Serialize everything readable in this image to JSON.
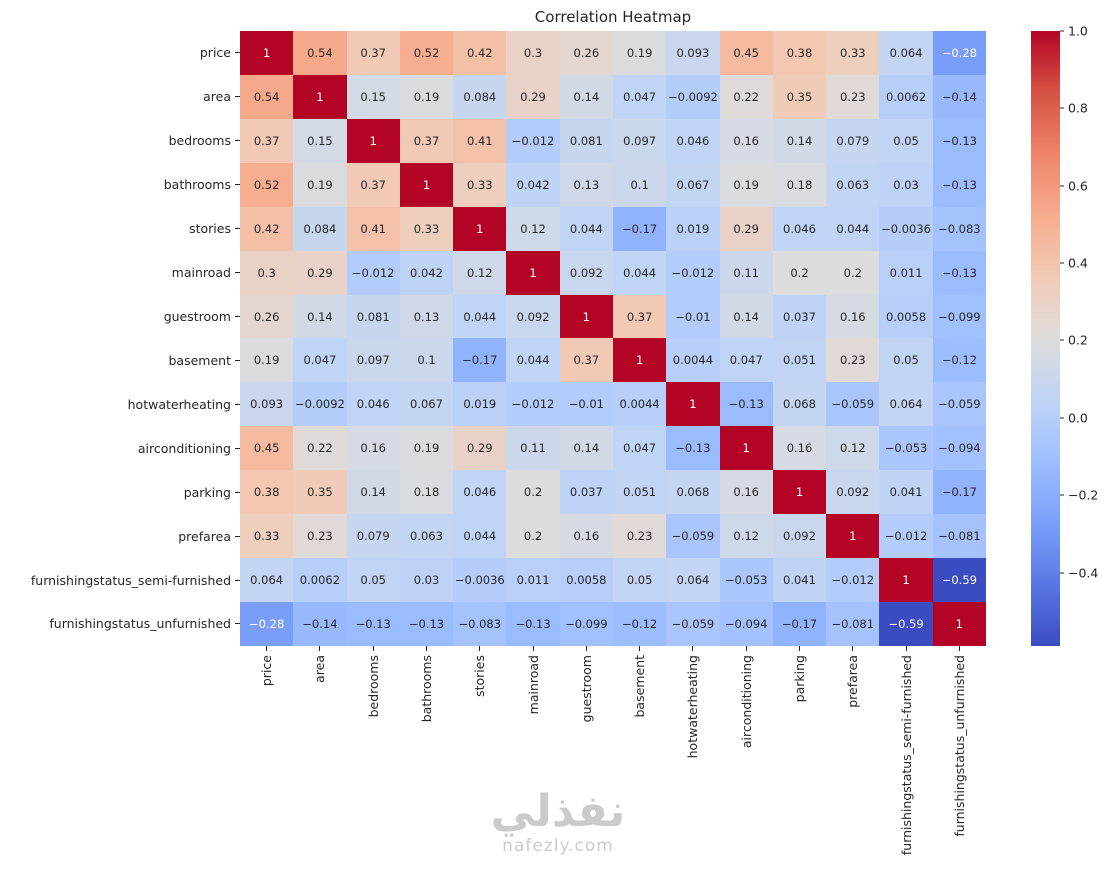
{
  "title": "Correlation Heatmap",
  "watermark": {
    "brand": "نفذلي",
    "domain": "nafezly.com"
  },
  "chart_data": {
    "type": "heatmap",
    "title": "Correlation Heatmap",
    "colormap": "coolwarm",
    "vmin": -0.59,
    "vmax": 1.0,
    "legend_position": "right",
    "colorbar_ticks": [
      1.0,
      0.8,
      0.6,
      0.4,
      0.2,
      0.0,
      -0.2,
      -0.4
    ],
    "categories": [
      "price",
      "area",
      "bedrooms",
      "bathrooms",
      "stories",
      "mainroad",
      "guestroom",
      "basement",
      "hotwaterheating",
      "airconditioning",
      "parking",
      "prefarea",
      "furnishingstatus_semi-furnished",
      "furnishingstatus_unfurnished"
    ],
    "matrix": [
      [
        1,
        0.54,
        0.37,
        0.52,
        0.42,
        0.3,
        0.26,
        0.19,
        0.093,
        0.45,
        0.38,
        0.33,
        0.064,
        -0.28
      ],
      [
        0.54,
        1,
        0.15,
        0.19,
        0.084,
        0.29,
        0.14,
        0.047,
        -0.0092,
        0.22,
        0.35,
        0.23,
        0.0062,
        -0.14
      ],
      [
        0.37,
        0.15,
        1,
        0.37,
        0.41,
        -0.012,
        0.081,
        0.097,
        0.046,
        0.16,
        0.14,
        0.079,
        0.05,
        -0.13
      ],
      [
        0.52,
        0.19,
        0.37,
        1,
        0.33,
        0.042,
        0.13,
        0.1,
        0.067,
        0.19,
        0.18,
        0.063,
        0.03,
        -0.13
      ],
      [
        0.42,
        0.084,
        0.41,
        0.33,
        1,
        0.12,
        0.044,
        -0.17,
        0.019,
        0.29,
        0.046,
        0.044,
        -0.0036,
        -0.083
      ],
      [
        0.3,
        0.29,
        -0.012,
        0.042,
        0.12,
        1,
        0.092,
        0.044,
        -0.012,
        0.11,
        0.2,
        0.2,
        0.011,
        -0.13
      ],
      [
        0.26,
        0.14,
        0.081,
        0.13,
        0.044,
        0.092,
        1,
        0.37,
        -0.01,
        0.14,
        0.037,
        0.16,
        0.0058,
        -0.099
      ],
      [
        0.19,
        0.047,
        0.097,
        0.1,
        -0.17,
        0.044,
        0.37,
        1,
        0.0044,
        0.047,
        0.051,
        0.23,
        0.05,
        -0.12
      ],
      [
        0.093,
        -0.0092,
        0.046,
        0.067,
        0.019,
        -0.012,
        -0.01,
        0.0044,
        1,
        -0.13,
        0.068,
        -0.059,
        0.064,
        -0.059
      ],
      [
        0.45,
        0.22,
        0.16,
        0.19,
        0.29,
        0.11,
        0.14,
        0.047,
        -0.13,
        1,
        0.16,
        0.12,
        -0.053,
        -0.094
      ],
      [
        0.38,
        0.35,
        0.14,
        0.18,
        0.046,
        0.2,
        0.037,
        0.051,
        0.068,
        0.16,
        1,
        0.092,
        0.041,
        -0.17
      ],
      [
        0.33,
        0.23,
        0.079,
        0.063,
        0.044,
        0.2,
        0.16,
        0.23,
        -0.059,
        0.12,
        0.092,
        1,
        -0.012,
        -0.081
      ],
      [
        0.064,
        0.0062,
        0.05,
        0.03,
        -0.0036,
        0.011,
        0.0058,
        0.05,
        0.064,
        -0.053,
        0.041,
        -0.012,
        1,
        -0.59
      ],
      [
        -0.28,
        -0.14,
        -0.13,
        -0.13,
        -0.083,
        -0.13,
        -0.099,
        -0.12,
        -0.059,
        -0.094,
        -0.17,
        -0.081,
        -0.59,
        1
      ]
    ]
  }
}
